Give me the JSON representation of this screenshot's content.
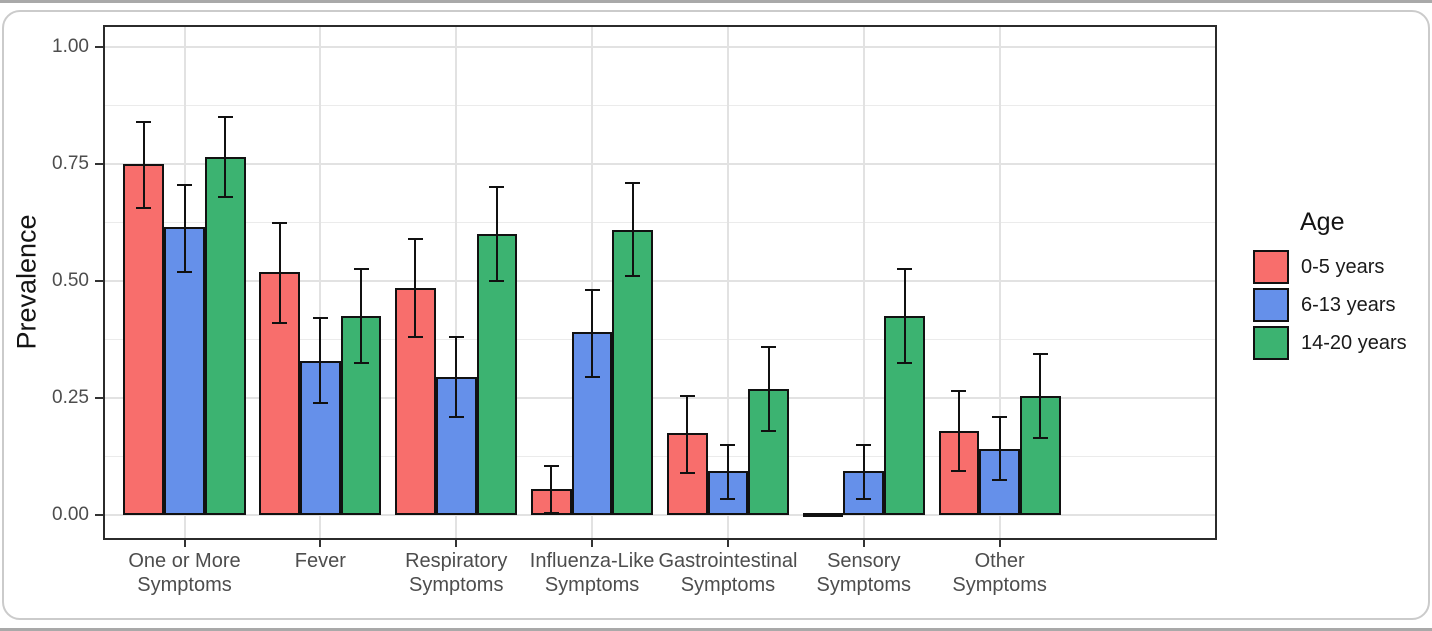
{
  "chart_data": {
    "type": "bar",
    "title": "",
    "xlabel": "",
    "ylabel": "Prevalence",
    "ylim": [
      0,
      1
    ],
    "grid": true,
    "legend_position": "right",
    "legend_title": "Age",
    "y_major_ticks": [
      0,
      0.25,
      0.5,
      0.75,
      1.0
    ],
    "y_tick_labels": [
      "0.00",
      "0.25",
      "0.50",
      "0.75",
      "1.00"
    ],
    "y_minor_ticks": [
      0.125,
      0.375,
      0.625,
      0.875
    ],
    "categories": [
      "One or More\nSymptoms",
      "Fever",
      "Respiratory\nSymptoms",
      "Influenza-Like\nSymptoms",
      "Gastrointestinal\nSymptoms",
      "Sensory\nSymptoms",
      "Other\nSymptoms"
    ],
    "series": [
      {
        "name": "0-5 years",
        "color": "#F86E6C",
        "values": [
          0.75,
          0.52,
          0.485,
          0.055,
          0.175,
          0.002,
          0.18
        ],
        "ci_low": [
          0.655,
          0.41,
          0.38,
          0.005,
          0.09,
          null,
          0.095
        ],
        "ci_high": [
          0.84,
          0.625,
          0.59,
          0.105,
          0.255,
          null,
          0.265
        ]
      },
      {
        "name": "6-13 years",
        "color": "#6590EA",
        "values": [
          0.615,
          0.33,
          0.295,
          0.39,
          0.095,
          0.095,
          0.14
        ],
        "ci_low": [
          0.52,
          0.24,
          0.21,
          0.295,
          0.035,
          0.035,
          0.075
        ],
        "ci_high": [
          0.705,
          0.42,
          0.38,
          0.48,
          0.15,
          0.15,
          0.21
        ]
      },
      {
        "name": "14-20 years",
        "color": "#3CB371",
        "values": [
          0.765,
          0.425,
          0.6,
          0.61,
          0.27,
          0.425,
          0.255
        ],
        "ci_low": [
          0.68,
          0.325,
          0.5,
          0.51,
          0.18,
          0.325,
          0.165
        ],
        "ci_high": [
          0.85,
          0.525,
          0.7,
          0.71,
          0.36,
          0.525,
          0.345
        ]
      }
    ],
    "style": {
      "bar_border_color": "#111111",
      "error_bar_color": "#111111",
      "major_grid_color": "#e2e2e2",
      "minor_grid_color": "#ebebeb",
      "panel_border_color": "#2b2b2b",
      "axis_text_color": "#4d4d4d",
      "title_text_color": "#141414"
    }
  }
}
